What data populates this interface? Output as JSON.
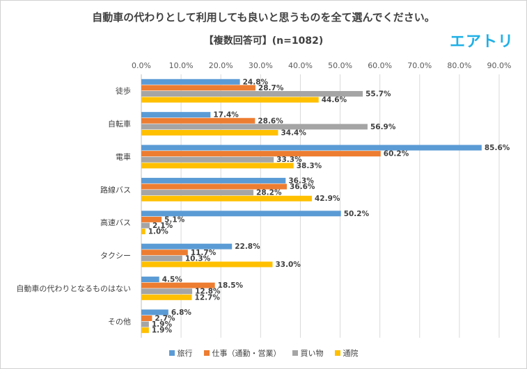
{
  "title": "自動車の代わりとして利用しても良いと思うものを全て選んでください。",
  "subtitle": "【複数回答可】(n=1082)",
  "logo": "エアトリ",
  "chart_data": {
    "type": "bar",
    "orientation": "horizontal",
    "value_axis_position": "top",
    "xlim": [
      0,
      90
    ],
    "tick_values": [
      0,
      10,
      20,
      30,
      40,
      50,
      60,
      70,
      80,
      90
    ],
    "tick_labels": [
      "0.0%",
      "10.0%",
      "20.0%",
      "30.0%",
      "40.0%",
      "50.0%",
      "60.0%",
      "70.0%",
      "80.0%",
      "90.0%"
    ],
    "grid": true,
    "legend_position": "bottom",
    "categories": [
      "徒歩",
      "自転車",
      "電車",
      "路線バス",
      "高速バス",
      "タクシー",
      "自動車の代わりとなるものはない",
      "その他"
    ],
    "series": [
      {
        "name": "旅行",
        "color": "#5b9bd5",
        "values": [
          24.8,
          17.4,
          85.6,
          36.3,
          50.2,
          22.8,
          4.5,
          6.8
        ]
      },
      {
        "name": "仕事（通勤・営業）",
        "color": "#ed7d31",
        "values": [
          28.7,
          28.6,
          60.2,
          36.6,
          5.1,
          11.7,
          18.5,
          2.7
        ]
      },
      {
        "name": "買い物",
        "color": "#a5a5a5",
        "values": [
          55.7,
          56.9,
          33.3,
          28.2,
          2.1,
          10.3,
          12.8,
          1.9
        ]
      },
      {
        "name": "通院",
        "color": "#ffc000",
        "values": [
          44.6,
          34.4,
          38.3,
          42.9,
          1.0,
          33.0,
          12.7,
          1.9
        ]
      }
    ],
    "value_label_suffix": "%"
  }
}
